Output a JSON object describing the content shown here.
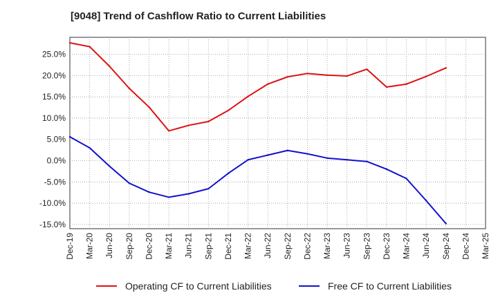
{
  "chart_data": {
    "type": "line",
    "title": "[9048]  Trend of Cashflow Ratio to Current Liabilities",
    "xlabel": "",
    "ylabel": "",
    "categories": [
      "Dec-19",
      "Mar-20",
      "Jun-20",
      "Sep-20",
      "Dec-20",
      "Mar-21",
      "Jun-21",
      "Sep-21",
      "Dec-21",
      "Mar-22",
      "Jun-22",
      "Sep-22",
      "Dec-22",
      "Mar-23",
      "Jun-23",
      "Sep-23",
      "Dec-23",
      "Mar-24",
      "Jun-24",
      "Sep-24",
      "Dec-24",
      "Mar-25"
    ],
    "ylim": [
      -16,
      29
    ],
    "yticks": [
      25,
      20,
      15,
      10,
      5,
      0,
      -5,
      -10,
      -15
    ],
    "ytick_labels": [
      "25.0%",
      "20.0%",
      "15.0%",
      "10.0%",
      "5.0%",
      "0.0%",
      "-5.0%",
      "-10.0%",
      "-15.0%"
    ],
    "grid": true,
    "legend_position": "bottom",
    "series": [
      {
        "name": "Operating CF to Current Liabilities",
        "color": "#dd1111",
        "values": [
          27.7,
          26.8,
          22.2,
          17.0,
          12.6,
          7.0,
          8.3,
          9.2,
          11.8,
          15.1,
          18.0,
          19.7,
          20.5,
          20.1,
          19.9,
          21.5,
          17.3,
          18.0,
          19.8,
          21.8,
          null,
          null
        ]
      },
      {
        "name": "Free CF to Current Liabilities",
        "color": "#1111cc",
        "values": [
          5.6,
          3.0,
          -1.3,
          -5.3,
          -7.4,
          -8.6,
          -7.8,
          -6.6,
          -3.0,
          0.2,
          1.3,
          2.4,
          1.6,
          0.6,
          0.2,
          -0.2,
          -2.0,
          -4.2,
          -9.4,
          -14.8,
          null,
          null
        ]
      }
    ]
  }
}
